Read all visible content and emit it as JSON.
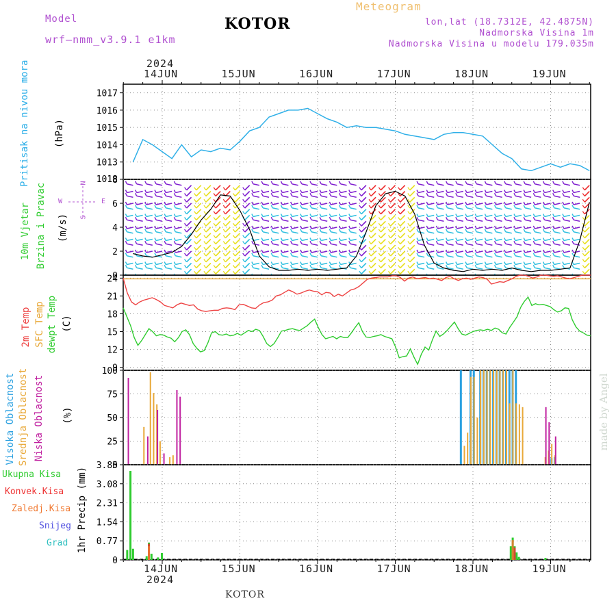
{
  "header": {
    "model_label": "Model",
    "model_name": "wrf—nmm_v3.9.1 e1km",
    "title": "KOTOR",
    "meteogram": "Meteogram",
    "lonlat": "lon,lat (18.7312E, 42.4875N)",
    "elevation": "Nadmorska Visina 1m",
    "model_elevation": "Nadmorska Visina u modelu 179.035m",
    "year_top": "2024",
    "year_bottom": "2024",
    "footer": "KOTOR",
    "credit": "made by Angel"
  },
  "colors": {
    "pressure": "#30b0e8",
    "temp2m": "#ee4444",
    "sfc_temp": "#e8a838",
    "dewpt": "#30cc30",
    "high_cloud": "#2aa0e0",
    "mid_cloud": "#e8a838",
    "low_cloud": "#c020a0",
    "total_precip": "#30cc30",
    "conv_precip": "#ee3333",
    "frz_precip": "#f07830",
    "snow": "#5050e0",
    "graupel": "#30c0c0",
    "wind_low": "#8020d0",
    "wind_mid": "#30c0e0",
    "wind_high": "#e8e020",
    "wind_peak": "#ee3030"
  },
  "chart_data": [
    {
      "type": "line",
      "panel": "pressure",
      "title": "",
      "ylabel": "Pritisak na nivou mora",
      "unit": "(hPa)",
      "x_start": "2024-06-13 15:00",
      "x_step_hours": 3,
      "ylim": [
        1012,
        1017.5
      ],
      "yticks": [
        1013,
        1014,
        1015,
        1016,
        1017
      ],
      "ytick_overlap": "1018",
      "series": [
        {
          "values": [
            1013.0,
            1014.3,
            1014.0,
            1013.6,
            1013.2,
            1014.0,
            1013.3,
            1013.7,
            1013.6,
            1013.8,
            1013.7,
            1014.2,
            1014.8,
            1015.0,
            1015.6,
            1015.8,
            1016.0,
            1016.0,
            1016.1,
            1015.8,
            1015.5,
            1015.3,
            1015.0,
            1015.1,
            1015.0,
            1015.0,
            1014.9,
            1014.8,
            1014.6,
            1014.5,
            1014.4,
            1014.3,
            1014.6,
            1014.7,
            1014.7,
            1014.6,
            1014.5,
            1014.0,
            1013.5,
            1013.2,
            1012.6,
            1012.5,
            1012.7,
            1012.9,
            1012.7,
            1012.9,
            1012.8,
            1012.5,
            1012.8,
            1013.2,
            1013.6,
            1013.8,
            1013.9,
            1013.7,
            1013.4,
            1013.1,
            1012.9,
            1013.3,
            1013.7,
            1013.8,
            1013.8,
            1013.9,
            1013.7,
            1013.3,
            1013.7,
            1014.0,
            1013.8,
            1014.6,
            1015.2,
            1015.1,
            1015.0,
            1015.1,
            1015.0,
            1015.2,
            1015.0,
            1014.8,
            1015.0,
            1015.2,
            1015.0,
            1014.7,
            1015.3,
            1015.6,
            1015.3,
            1015.4,
            1015.6,
            1015.3,
            1015.4,
            1015.3,
            1016.0,
            1016.4,
            1016.8,
            1017.0,
            1017.0,
            1016.9,
            1016.6,
            1016.3,
            1015.9,
            1015.7,
            1015.6,
            1015.7,
            1015.9,
            1015.7,
            1015.5,
            1015.5,
            1015.4,
            1015.5,
            1015.8,
            1016.1,
            1016.3,
            1016.6,
            1016.8,
            1016.7,
            1016.5,
            1016.3
          ]
        }
      ]
    },
    {
      "type": "line",
      "panel": "wind",
      "title": "",
      "ylabel": "10m Vjetar",
      "ylabel2": "Brzina i Pravac",
      "unit": "(m/s)",
      "compass": {
        "n": "N",
        "s": "S",
        "w": "W",
        "e": "E"
      },
      "ylim": [
        0,
        8
      ],
      "yticks": [
        0,
        2,
        4,
        6,
        8
      ],
      "series": [
        {
          "name": "speed",
          "values": [
            1.8,
            1.6,
            1.5,
            1.7,
            1.9,
            2.4,
            3.4,
            4.6,
            5.5,
            6.7,
            6.6,
            5.4,
            3.8,
            1.6,
            0.7,
            0.4,
            0.4,
            0.5,
            0.4,
            0.5,
            0.4,
            0.5,
            0.6,
            1.6,
            3.6,
            5.8,
            6.8,
            7.0,
            6.6,
            5.1,
            2.5,
            1.0,
            0.6,
            0.4,
            0.3,
            0.5,
            0.4,
            0.5,
            0.4,
            0.6,
            0.4,
            0.3,
            0.4,
            0.4,
            0.5,
            0.6,
            2.9,
            6.1,
            6.6,
            5.9,
            2.5,
            1.6,
            0.5,
            0.4,
            0.5,
            0.4,
            0.5,
            0.4,
            0.4,
            0.4,
            0.5,
            0.6,
            0.4,
            0.5,
            0.6,
            0.7,
            0.6,
            0.5,
            0.5,
            0.6,
            0.5,
            0.6,
            0.8,
            1.2,
            0.6,
            1.6,
            3.7,
            2.3,
            0.9,
            0.8,
            0.9,
            0.8,
            0.9,
            0.8,
            0.7,
            0.8,
            0.9,
            1.0,
            0.9,
            0.8,
            0.9,
            0.8,
            0.8,
            0.9,
            1.0,
            1.0,
            0.8,
            0.8,
            0.7,
            0.6,
            0.5,
            0.4,
            0.6,
            0.9,
            1.5,
            3.1,
            5.2,
            5.9,
            5.2,
            3.4,
            1.9,
            1.3,
            1.3,
            1.3
          ]
        }
      ]
    },
    {
      "type": "line",
      "panel": "temperature",
      "title": "",
      "ylabel": "2m Temp",
      "ylabel2": "SFC Temp",
      "ylabel3": "dewpt Temp",
      "unit": "(C)",
      "ylim": [
        8.5,
        24.5
      ],
      "yticks": [
        9,
        12,
        15,
        18,
        21,
        24
      ],
      "series": [
        {
          "name": "2m Temp",
          "values": [
            24.0,
            21.5,
            20.0,
            19.5,
            20.0,
            20.3,
            20.5,
            20.7,
            20.4,
            20.0,
            19.4,
            19.2,
            19.0,
            19.5,
            19.8,
            19.6,
            19.4,
            19.5,
            18.8,
            18.5,
            18.4,
            18.5,
            18.6,
            18.6,
            18.9,
            19.0,
            18.9,
            18.7,
            19.5,
            19.6,
            19.3,
            19.0,
            18.9,
            19.5,
            19.9,
            20.0,
            20.3,
            21.0,
            21.2,
            21.6,
            22.0,
            21.7,
            21.3,
            21.5,
            21.8,
            22.0,
            21.8,
            21.7,
            21.2,
            21.6,
            21.5,
            20.9,
            21.3,
            21.0,
            21.5,
            22.0,
            22.2,
            22.6,
            23.2,
            23.8,
            24.0,
            24.1,
            24.2,
            24.2,
            24.2,
            24.4,
            24.4,
            24.1,
            23.5,
            24.0,
            24.2,
            23.9,
            24.0,
            24.1,
            23.9,
            24.0,
            23.8,
            23.6,
            24.1,
            24.3,
            23.9,
            23.6,
            23.9,
            24.0,
            23.8,
            24.0,
            24.2,
            24.1,
            23.8,
            23.0,
            23.2,
            23.4,
            23.3,
            23.6,
            23.9,
            24.3,
            24.6,
            24.5,
            24.3,
            24.0,
            24.2,
            24.5,
            24.5,
            24.4,
            24.3,
            24.4,
            24.2,
            24.0,
            23.9,
            24.1,
            24.3,
            24.5,
            24.6,
            24.5
          ]
        },
        {
          "name": "SFC Temp",
          "values": [
            24.0
          ]
        },
        {
          "name": "dewpt Temp",
          "values": [
            19.0,
            17.5,
            16.0,
            14.0,
            12.7,
            13.5,
            14.5,
            15.5,
            15.0,
            14.3,
            14.5,
            14.4,
            14.1,
            13.9,
            13.3,
            14.0,
            15.0,
            15.3,
            14.5,
            13.0,
            12.2,
            11.6,
            11.8,
            13.1,
            14.8,
            15.0,
            14.5,
            14.4,
            14.6,
            14.3,
            14.4,
            14.7,
            14.4,
            14.8,
            15.2,
            15.0,
            15.4,
            15.2,
            14.2,
            13.0,
            12.5,
            13.0,
            14.0,
            15.1,
            15.2,
            15.4,
            15.5,
            15.3,
            15.2,
            15.6,
            16.0,
            16.6,
            17.1,
            15.7,
            14.5,
            13.8,
            14.0,
            14.2,
            13.8,
            14.2,
            14.0,
            14.0,
            14.8,
            15.7,
            16.5,
            15.0,
            14.1,
            14.0,
            14.2,
            14.3,
            14.5,
            14.2,
            14.0,
            13.8,
            12.4,
            10.6,
            10.8,
            10.9,
            12.1,
            10.7,
            9.5,
            11.2,
            12.4,
            11.9,
            13.6,
            15.1,
            14.2,
            14.6,
            15.2,
            15.9,
            16.6,
            15.5,
            14.6,
            14.4,
            14.7,
            15.0,
            15.2,
            15.3,
            15.2,
            15.4,
            15.2,
            15.6,
            15.4,
            14.8,
            14.6,
            15.7,
            16.6,
            17.5,
            19.1,
            20.1,
            20.8,
            19.4,
            19.7,
            19.5,
            19.6,
            19.4,
            19.2,
            18.7,
            18.3,
            18.5,
            19.0,
            18.9,
            17.0,
            15.8,
            15.1,
            14.8,
            14.4,
            14.3
          ]
        }
      ]
    },
    {
      "type": "bar",
      "panel": "clouds",
      "title": "",
      "ylabel": "Visoka Oblacnost",
      "ylabel2": "Srednja Oblacnost",
      "ylabel3": "Niska Oblacnost",
      "unit": "(%)",
      "ylim": [
        0,
        100
      ],
      "yticks": [
        0,
        25,
        50,
        75,
        100
      ],
      "series": [
        {
          "name": "Visoka Oblacnost",
          "hours": [
            104,
            107,
            108,
            110,
            111,
            112,
            113,
            114,
            115,
            116,
            117,
            118,
            119,
            120,
            121,
            132,
            133
          ],
          "values": [
            100,
            100,
            100,
            100,
            100,
            100,
            100,
            100,
            100,
            100,
            100,
            100,
            100,
            100,
            100,
            7,
            8
          ]
        },
        {
          "name": "Srednja Oblacnost",
          "hours": [
            6,
            8,
            9,
            10,
            11,
            14,
            15,
            105,
            106,
            107,
            108,
            109,
            110,
            111,
            112,
            113,
            114,
            115,
            116,
            117,
            118,
            119,
            120,
            121,
            122,
            123,
            130,
            131,
            132,
            133
          ],
          "values": [
            40,
            98,
            76,
            64,
            25,
            8,
            10,
            20,
            34,
            93,
            93,
            50,
            100,
            100,
            100,
            100,
            100,
            100,
            100,
            100,
            100,
            65,
            100,
            65,
            64,
            61,
            8,
            15,
            22,
            10
          ],
          "x_offset_note": "mid cloud bars"
        },
        {
          "name": "Niska Oblacnost",
          "hours": [
            1,
            7,
            10,
            12,
            16,
            17,
            130,
            131,
            133
          ],
          "values": [
            92,
            30,
            58,
            12,
            79,
            72,
            61,
            45,
            30
          ],
          "extra": [
            26,
            8
          ]
        }
      ]
    },
    {
      "type": "bar",
      "panel": "precip",
      "title": "",
      "ylabel": "1hr Precip (mm)",
      "legend": [
        "Ukupna Kisa",
        "Konvek.Kisa",
        "Zaledj.Kisa",
        "Snijeg",
        "Grad"
      ],
      "ylim": [
        0,
        3.85
      ],
      "yticks": [
        0,
        0.77,
        1.54,
        2.31,
        3.08,
        3.85
      ],
      "ytick_labels": [
        "0",
        "0.77",
        "1.54",
        "2.31",
        "3.08",
        "3.85"
      ],
      "series": [
        {
          "name": "Ukupna Kisa",
          "points": [
            [
              0.5,
              0.4
            ],
            [
              1.5,
              3.6
            ],
            [
              2.3,
              0.45
            ],
            [
              6.5,
              0.15
            ],
            [
              7.2,
              0.7
            ],
            [
              8.0,
              0.25
            ],
            [
              10.0,
              0.1
            ],
            [
              11.2,
              0.28
            ],
            [
              119.0,
              0.55
            ],
            [
              119.6,
              0.9
            ],
            [
              120.2,
              0.55
            ],
            [
              120.8,
              0.3
            ],
            [
              121.5,
              0.12
            ],
            [
              129.7,
              0.08
            ]
          ]
        },
        {
          "name": "Konvek.Kisa",
          "points": [
            [
              7.2,
              0.65
            ],
            [
              120.2,
              0.5
            ]
          ]
        },
        {
          "name": "Zaledj.Kisa",
          "points": [
            [
              7.2,
              0.55
            ],
            [
              119.6,
              0.8
            ]
          ]
        }
      ]
    },
    {
      "type": "line",
      "panel": "time_axis",
      "title": "",
      "ticks": [
        "14JUN",
        "15JUN",
        "16JUN",
        "17JUN",
        "18JUN",
        "19JUN"
      ]
    }
  ]
}
